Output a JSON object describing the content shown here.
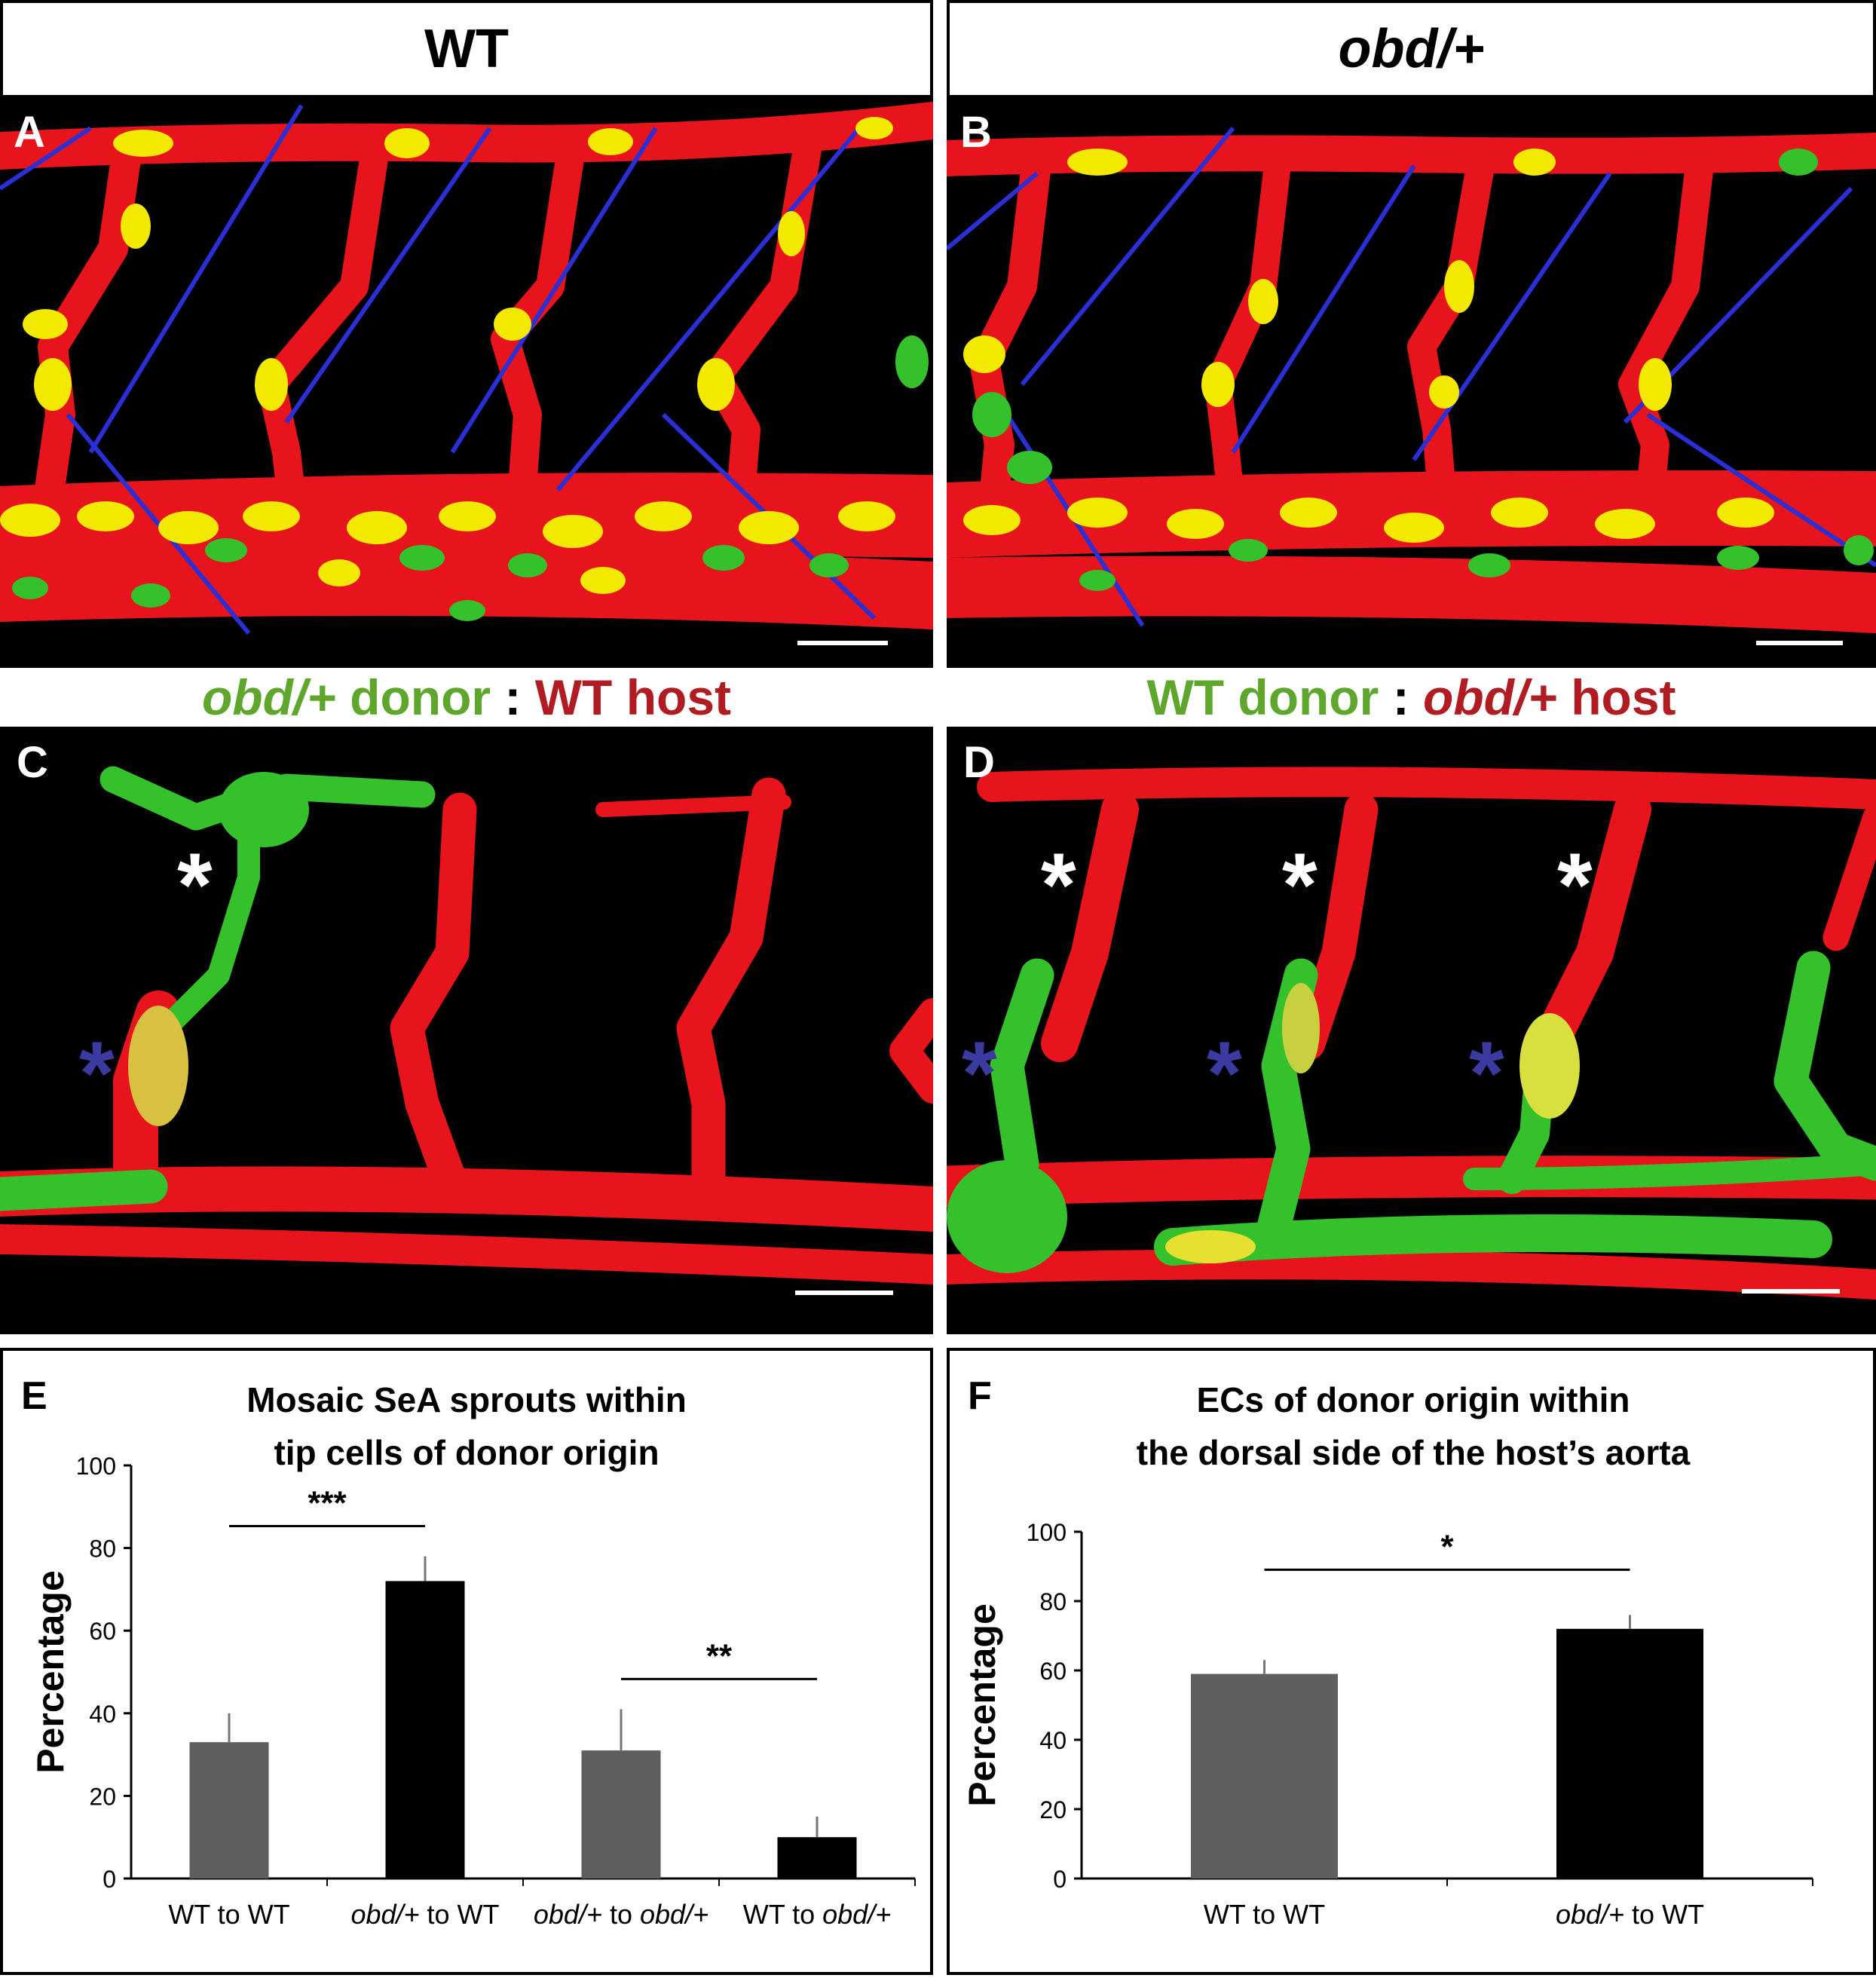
{
  "headers": {
    "wt": "WT",
    "obd": "obd/+"
  },
  "strips": {
    "left": {
      "donor_geno": "obd/+",
      "donor_word": " donor",
      "sep": " : ",
      "host": "WT host"
    },
    "right": {
      "donor": "WT donor",
      "sep": " : ",
      "host_geno": "obd/+",
      "host_word": " host"
    }
  },
  "panels": {
    "a": "A",
    "b": "B",
    "c": "C",
    "d": "D",
    "e": "E",
    "f": "F"
  },
  "stars": {
    "white": "*",
    "blue": "*"
  },
  "colors": {
    "vessel_red": "#e8141b",
    "nucleus_yellow": "#f2e800",
    "nucleus_green": "#35c12c",
    "somite_blue": "#2b2fd6",
    "donor_green": "#5fa62c",
    "host_red": "#b01c22",
    "bar_gray": "#5f5f5f",
    "bar_black": "#000000"
  },
  "chart_data": [
    {
      "type": "bar",
      "panel": "E",
      "title_lines": [
        "Mosaic SeA sprouts within",
        "tip cells of donor origin"
      ],
      "ylabel": "Percentage",
      "ylim": [
        0,
        100
      ],
      "yticks": [
        0,
        20,
        40,
        60,
        80,
        100
      ],
      "categories": [
        "WT to WT",
        "obd/+ to WT",
        "obd/+ to obd/+",
        "WT to obd/+"
      ],
      "values": [
        33,
        72,
        31,
        10
      ],
      "errors": [
        7,
        6,
        10,
        5
      ],
      "bar_colors": [
        "#5f5f5f",
        "#000000",
        "#5f5f5f",
        "#000000"
      ],
      "significance": [
        {
          "from": 0,
          "to": 1,
          "label": "***"
        },
        {
          "from": 2,
          "to": 3,
          "label": "**"
        }
      ]
    },
    {
      "type": "bar",
      "panel": "F",
      "title_lines": [
        "ECs of donor origin within",
        "the dorsal side of the host’s aorta"
      ],
      "ylabel": "Percentage",
      "ylim": [
        0,
        100
      ],
      "yticks": [
        0,
        20,
        40,
        60,
        80,
        100
      ],
      "categories": [
        "WT to WT",
        "obd/+ to WT"
      ],
      "values": [
        59,
        72
      ],
      "errors": [
        4,
        4
      ],
      "bar_colors": [
        "#5f5f5f",
        "#000000"
      ],
      "significance": [
        {
          "from": 0,
          "to": 1,
          "label": "*"
        }
      ]
    }
  ]
}
